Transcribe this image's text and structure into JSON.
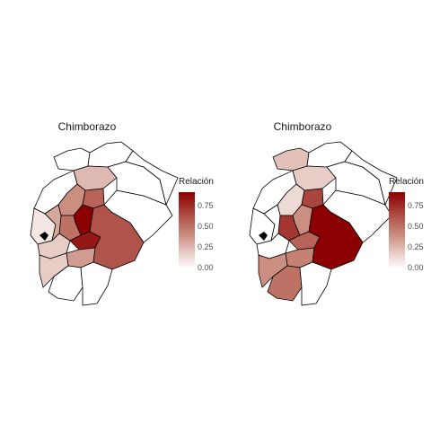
{
  "chart_data": [
    {
      "type": "choropleth",
      "title": "Chimborazo",
      "legend": {
        "title": "Relación",
        "ticks": [
          "0.75",
          "0.50",
          "0.25",
          "0.00"
        ],
        "range": [
          0,
          0.93
        ],
        "colors": [
          "#ffffff",
          "#8b0000"
        ],
        "placement": "right"
      },
      "regions": [
        {
          "name": "north",
          "value": 0
        },
        {
          "name": "north-2",
          "value": 0
        },
        {
          "name": "coast-north",
          "value": 0
        },
        {
          "name": "coast-mid",
          "value": 0.1
        },
        {
          "name": "pichincha",
          "value": 0.28
        },
        {
          "name": "cotopaxi",
          "value": 0.45
        },
        {
          "name": "tungurahua",
          "value": 0.6
        },
        {
          "name": "chimborazo",
          "value": 0.93
        },
        {
          "name": "bolivar",
          "value": 0.55
        },
        {
          "name": "los-rios",
          "value": 0.35
        },
        {
          "name": "guayas-north",
          "value": 0.2
        },
        {
          "name": "canar",
          "value": 0.85
        },
        {
          "name": "azuay",
          "value": 0.4
        },
        {
          "name": "morona",
          "value": 0.65
        },
        {
          "name": "pastaza",
          "value": 0
        },
        {
          "name": "orellana",
          "value": 0
        },
        {
          "name": "sucumbios",
          "value": 0
        },
        {
          "name": "south-coast",
          "value": 0.2
        },
        {
          "name": "loja",
          "value": 0
        },
        {
          "name": "zamora",
          "value": 0
        }
      ]
    },
    {
      "type": "choropleth",
      "title": "Chimborazo",
      "legend": {
        "title": "Relación",
        "ticks": [
          "0.75",
          "0.50",
          "0.25",
          "0.00"
        ],
        "range": [
          0,
          0.93
        ],
        "colors": [
          "#ffffff",
          "#8b0000"
        ],
        "placement": "right"
      },
      "regions": [
        {
          "name": "north",
          "value": 0.25
        },
        {
          "name": "north-2",
          "value": 0
        },
        {
          "name": "coast-north",
          "value": 0
        },
        {
          "name": "coast-mid",
          "value": 0
        },
        {
          "name": "pichincha",
          "value": 0.2
        },
        {
          "name": "cotopaxi",
          "value": 0.15
        },
        {
          "name": "tungurahua",
          "value": 0.7
        },
        {
          "name": "chimborazo",
          "value": 0.45
        },
        {
          "name": "bolivar",
          "value": 0.75
        },
        {
          "name": "los-rios",
          "value": 0
        },
        {
          "name": "guayas-north",
          "value": 0
        },
        {
          "name": "canar",
          "value": 0.6
        },
        {
          "name": "azuay",
          "value": 0.5
        },
        {
          "name": "morona",
          "value": 0.93
        },
        {
          "name": "pastaza",
          "value": 0
        },
        {
          "name": "orellana",
          "value": 0
        },
        {
          "name": "sucumbios",
          "value": 0
        },
        {
          "name": "south-coast",
          "value": 0.45
        },
        {
          "name": "loja",
          "value": 0.55
        },
        {
          "name": "zamora",
          "value": 0
        }
      ]
    }
  ]
}
